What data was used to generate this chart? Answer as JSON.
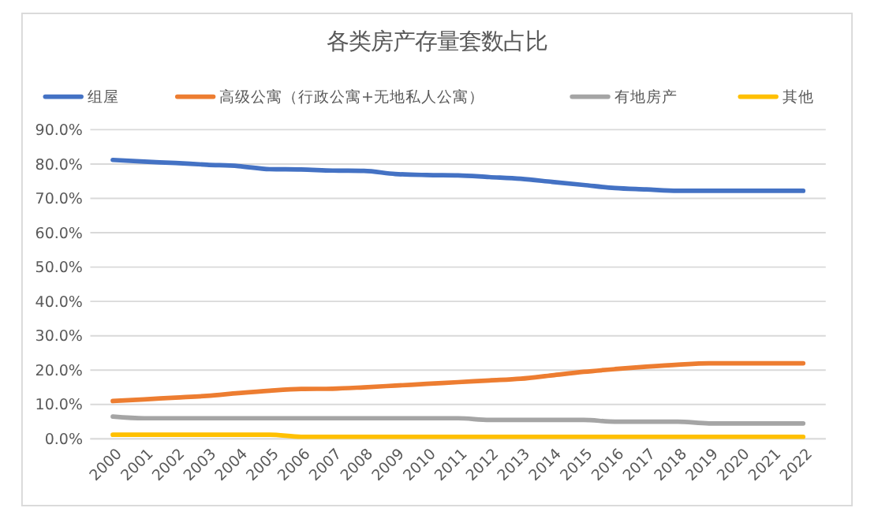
{
  "chart_data": {
    "type": "line",
    "title": "各类房产存量套数占比",
    "categories": [
      "2000",
      "2001",
      "2002",
      "2003",
      "2004",
      "2005",
      "2006",
      "2007",
      "2008",
      "2009",
      "2010",
      "2011",
      "2012",
      "2013",
      "2014",
      "2015",
      "2016",
      "2017",
      "2018",
      "2019",
      "2020",
      "2021",
      "2022"
    ],
    "series": [
      {
        "name": "组屋",
        "color": "#4472c4",
        "values": [
          81.2,
          80.7,
          80.3,
          79.8,
          79.4,
          78.5,
          78.4,
          78.1,
          78.0,
          77.1,
          76.8,
          76.7,
          76.2,
          75.7,
          74.8,
          73.9,
          73.0,
          72.6,
          72.2,
          72.2,
          72.2,
          72.2,
          72.2
        ]
      },
      {
        "name": "高级公寓（行政公寓+无地私人公寓）",
        "color": "#ed7d31",
        "values": [
          11.0,
          11.5,
          12.0,
          12.5,
          13.3,
          14.0,
          14.5,
          14.6,
          15.0,
          15.5,
          16.0,
          16.5,
          17.0,
          17.5,
          18.5,
          19.5,
          20.3,
          21.0,
          21.6,
          22.0,
          22.0,
          22.0,
          22.0
        ]
      },
      {
        "name": "有地房产",
        "color": "#a5a5a5",
        "values": [
          6.5,
          6.0,
          6.0,
          6.0,
          6.0,
          6.0,
          6.0,
          6.0,
          6.0,
          6.0,
          6.0,
          6.0,
          5.5,
          5.5,
          5.5,
          5.5,
          5.0,
          5.0,
          5.0,
          4.5,
          4.5,
          4.5,
          4.5
        ]
      },
      {
        "name": "其他",
        "color": "#ffc000",
        "values": [
          1.2,
          1.2,
          1.2,
          1.2,
          1.2,
          1.2,
          0.6,
          0.6,
          0.6,
          0.6,
          0.6,
          0.6,
          0.6,
          0.6,
          0.6,
          0.6,
          0.6,
          0.6,
          0.6,
          0.6,
          0.6,
          0.6,
          0.6
        ]
      }
    ],
    "ylim": [
      0,
      90
    ],
    "yticks": [
      {
        "value": 0,
        "label": "0.0%"
      },
      {
        "value": 10,
        "label": "10.0%"
      },
      {
        "value": 20,
        "label": "20.0%"
      },
      {
        "value": 30,
        "label": "30.0%"
      },
      {
        "value": 40,
        "label": "40.0%"
      },
      {
        "value": 50,
        "label": "50.0%"
      },
      {
        "value": 60,
        "label": "60.0%"
      },
      {
        "value": 70,
        "label": "70.0%"
      },
      {
        "value": 80,
        "label": "80.0%"
      },
      {
        "value": 90,
        "label": "90.0%"
      }
    ],
    "grid": "y",
    "legend": "top",
    "marker": "none",
    "line_style": "solid"
  }
}
